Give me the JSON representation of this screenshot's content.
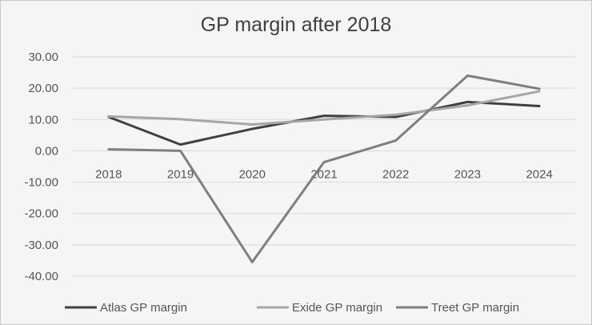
{
  "chart_data": {
    "type": "line",
    "title": "GP margin after 2018",
    "xlabel": "",
    "ylabel": "",
    "categories": [
      "2018",
      "2019",
      "2020",
      "2021",
      "2022",
      "2023",
      "2024"
    ],
    "ylim": [
      -40,
      30
    ],
    "y_ticks": [
      "30.00",
      "20.00",
      "10.00",
      "0.00",
      "-10.00",
      "-20.00",
      "-30.00",
      "-40.00"
    ],
    "grid": true,
    "legend_position": "bottom",
    "series": [
      {
        "name": "Atlas GP margin",
        "values": [
          10.8,
          2.0,
          7.0,
          11.2,
          10.8,
          15.6,
          14.3
        ],
        "color": "#404040"
      },
      {
        "name": "Exide GP margin",
        "values": [
          11.0,
          10.1,
          8.4,
          10.0,
          11.5,
          14.5,
          19.0
        ],
        "color": "#a6a6a6"
      },
      {
        "name": "Treet GP margin",
        "values": [
          0.5,
          0.0,
          -35.5,
          -3.6,
          3.3,
          24.0,
          19.8
        ],
        "color": "#7f7f7f"
      }
    ]
  }
}
